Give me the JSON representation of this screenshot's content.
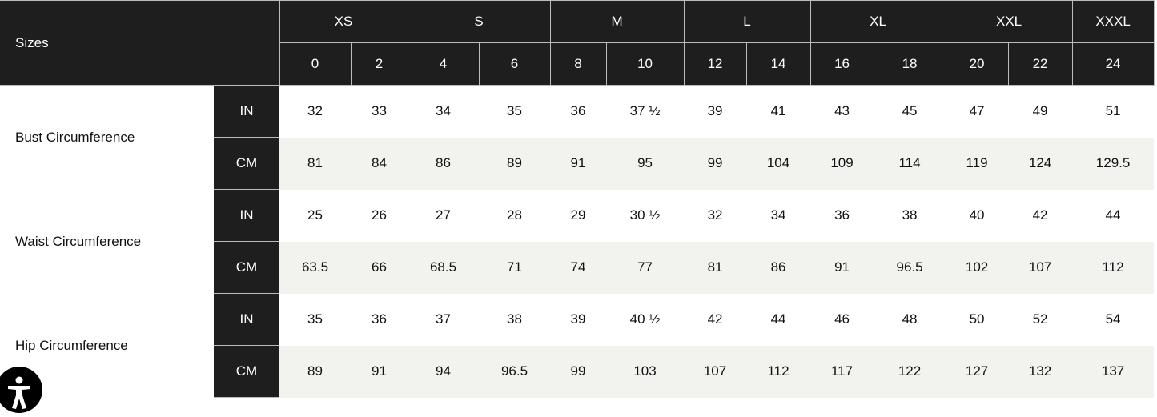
{
  "header": {
    "sizes_label": "Sizes",
    "groups": [
      {
        "label": "XS",
        "span": 2
      },
      {
        "label": "S",
        "span": 2
      },
      {
        "label": "M",
        "span": 2
      },
      {
        "label": "L",
        "span": 2
      },
      {
        "label": "XL",
        "span": 2
      },
      {
        "label": "XXL",
        "span": 2
      },
      {
        "label": "XXXL",
        "span": 1
      }
    ],
    "numbers": [
      "0",
      "2",
      "4",
      "6",
      "8",
      "10",
      "12",
      "14",
      "16",
      "18",
      "20",
      "22",
      "24"
    ]
  },
  "measurements": [
    {
      "label": "Bust Circumference",
      "rows": [
        {
          "unit": "IN",
          "values": [
            "32",
            "33",
            "34",
            "35",
            "36",
            "37 ½",
            "39",
            "41",
            "43",
            "45",
            "47",
            "49",
            "51"
          ]
        },
        {
          "unit": "CM",
          "values": [
            "81",
            "84",
            "86",
            "89",
            "91",
            "95",
            "99",
            "104",
            "109",
            "114",
            "119",
            "124",
            "129.5"
          ]
        }
      ]
    },
    {
      "label": "Waist Circumference",
      "rows": [
        {
          "unit": "IN",
          "values": [
            "25",
            "26",
            "27",
            "28",
            "29",
            "30 ½",
            "32",
            "34",
            "36",
            "38",
            "40",
            "42",
            "44"
          ]
        },
        {
          "unit": "CM",
          "values": [
            "63.5",
            "66",
            "68.5",
            "71",
            "74",
            "77",
            "81",
            "86",
            "91",
            "96.5",
            "102",
            "107",
            "112"
          ]
        }
      ]
    },
    {
      "label": "Hip Circumference",
      "rows": [
        {
          "unit": "IN",
          "values": [
            "35",
            "36",
            "37",
            "38",
            "39",
            "40 ½",
            "42",
            "44",
            "46",
            "48",
            "50",
            "52",
            "54"
          ]
        },
        {
          "unit": "CM",
          "values": [
            "89",
            "91",
            "94",
            "96.5",
            "99",
            "103",
            "107",
            "112",
            "117",
            "122",
            "127",
            "132",
            "137"
          ]
        }
      ]
    }
  ],
  "accessibility": {
    "icon": "accessibility-icon"
  }
}
